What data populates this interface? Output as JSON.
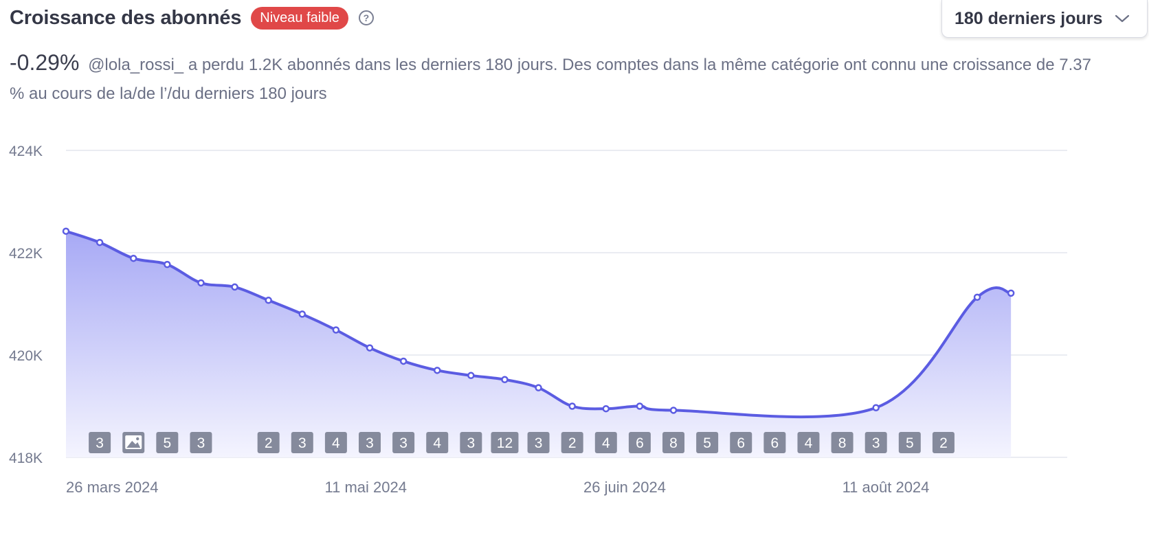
{
  "header": {
    "title": "Croissance des abonnés",
    "badge": "Niveau faible",
    "help_icon": "question-circle-icon",
    "help_glyph": "?"
  },
  "range_select": {
    "value": "180 derniers jours",
    "icon": "chevron-down-icon"
  },
  "summary": {
    "percent": "-0.29%",
    "text": "@lola_rossi_ a perdu 1.2K abonnés dans les derniers 180 jours. Des comptes dans la même catégorie ont connu une croissance de 7.37 % au cours de la/de l’/du derniers 180 jours"
  },
  "colors": {
    "line": "#5b5ce2",
    "fill_top": "#a7a9f5",
    "fill_bottom": "#f4f4fe",
    "badge": "#e04848",
    "count_box": "#858a9c",
    "grid": "#e4e6ee"
  },
  "chart_data": {
    "type": "area",
    "title": "",
    "xlabel": "",
    "ylabel": "",
    "ylim": [
      418000,
      424000
    ],
    "y_ticks": [
      {
        "value": 424000,
        "label": "424K"
      },
      {
        "value": 422000,
        "label": "422K"
      },
      {
        "value": 420000,
        "label": "420K"
      },
      {
        "value": 418000,
        "label": "418K"
      }
    ],
    "x_range": [
      "2024-03-26",
      "2024-09-20"
    ],
    "x_ticks": [
      {
        "date": "2024-03-26",
        "label": "26 mars 2024"
      },
      {
        "date": "2024-05-11",
        "label": "11 mai 2024"
      },
      {
        "date": "2024-06-26",
        "label": "26 juin 2024"
      },
      {
        "date": "2024-08-11",
        "label": "11 août 2024"
      }
    ],
    "grid": true,
    "series": [
      {
        "points": [
          {
            "date": "2024-03-26",
            "value": 422420
          },
          {
            "date": "2024-04-01",
            "value": 422200
          },
          {
            "date": "2024-04-07",
            "value": 421890
          },
          {
            "date": "2024-04-13",
            "value": 421770
          },
          {
            "date": "2024-04-19",
            "value": 421410
          },
          {
            "date": "2024-04-25",
            "value": 421330
          },
          {
            "date": "2024-05-01",
            "value": 421070
          },
          {
            "date": "2024-05-07",
            "value": 420800
          },
          {
            "date": "2024-05-13",
            "value": 420490
          },
          {
            "date": "2024-05-19",
            "value": 420140
          },
          {
            "date": "2024-05-25",
            "value": 419880
          },
          {
            "date": "2024-05-31",
            "value": 419700
          },
          {
            "date": "2024-06-06",
            "value": 419600
          },
          {
            "date": "2024-06-12",
            "value": 419520
          },
          {
            "date": "2024-06-18",
            "value": 419360
          },
          {
            "date": "2024-06-24",
            "value": 419000
          },
          {
            "date": "2024-06-30",
            "value": 418950
          },
          {
            "date": "2024-07-06",
            "value": 419000
          },
          {
            "date": "2024-07-12",
            "value": 418920
          },
          {
            "date": "2024-08-17",
            "value": 418970
          },
          {
            "date": "2024-09-04",
            "value": 421130
          },
          {
            "date": "2024-09-10",
            "value": 421210
          }
        ]
      }
    ],
    "post_counts": [
      {
        "date": "2024-04-01",
        "label": "3"
      },
      {
        "date": "2024-04-07",
        "label": "",
        "icon": "image-icon"
      },
      {
        "date": "2024-04-13",
        "label": "5"
      },
      {
        "date": "2024-04-19",
        "label": "3"
      },
      {
        "date": "2024-05-01",
        "label": "2"
      },
      {
        "date": "2024-05-07",
        "label": "3"
      },
      {
        "date": "2024-05-13",
        "label": "4"
      },
      {
        "date": "2024-05-19",
        "label": "3"
      },
      {
        "date": "2024-05-25",
        "label": "3"
      },
      {
        "date": "2024-05-31",
        "label": "4"
      },
      {
        "date": "2024-06-06",
        "label": "3"
      },
      {
        "date": "2024-06-12",
        "label": "12"
      },
      {
        "date": "2024-06-18",
        "label": "3"
      },
      {
        "date": "2024-06-24",
        "label": "2"
      },
      {
        "date": "2024-06-30",
        "label": "4"
      },
      {
        "date": "2024-07-06",
        "label": "6"
      },
      {
        "date": "2024-07-12",
        "label": "8"
      },
      {
        "date": "2024-07-18",
        "label": "5"
      },
      {
        "date": "2024-07-24",
        "label": "6"
      },
      {
        "date": "2024-07-30",
        "label": "6"
      },
      {
        "date": "2024-08-05",
        "label": "4"
      },
      {
        "date": "2024-08-11",
        "label": "8"
      },
      {
        "date": "2024-08-17",
        "label": "3"
      },
      {
        "date": "2024-08-23",
        "label": "5"
      },
      {
        "date": "2024-08-29",
        "label": "2"
      }
    ]
  }
}
